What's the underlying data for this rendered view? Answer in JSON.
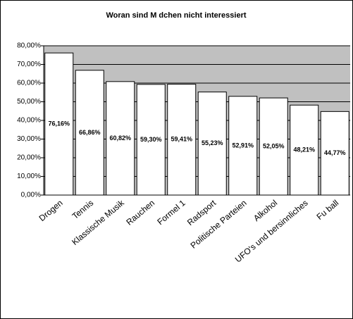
{
  "chart_data": {
    "type": "bar",
    "title": "Woran sind M dchen nicht interessiert",
    "categories": [
      "Drogen",
      "Tennis",
      "Klassische Musik",
      "Rauchen",
      "Formel 1",
      "Radsport",
      "Politische Parteien",
      "Alkohol",
      "UFO's und  bersinnliches",
      "Fu ball"
    ],
    "values": [
      76.16,
      66.86,
      60.82,
      59.3,
      59.41,
      55.23,
      52.91,
      52.05,
      48.21,
      44.77
    ],
    "value_labels": [
      "76,16%",
      "66,86%",
      "60,82%",
      "59,30%",
      "59,41%",
      "55,23%",
      "52,91%",
      "52,05%",
      "48,21%",
      "44,77%"
    ],
    "color": "#ffffff",
    "ylim": [
      0,
      80
    ],
    "yticks": [
      {
        "value": 0,
        "label": "0,00%"
      },
      {
        "value": 10,
        "label": "10,00%"
      },
      {
        "value": 20,
        "label": "20,00%"
      },
      {
        "value": 30,
        "label": "30,00%"
      },
      {
        "value": 40,
        "label": "40,00%"
      },
      {
        "value": 50,
        "label": "50,00%"
      },
      {
        "value": 60,
        "label": "60,00%"
      },
      {
        "value": 70,
        "label": "70,00%"
      },
      {
        "value": 80,
        "label": "80,00%"
      }
    ],
    "grid": true
  }
}
